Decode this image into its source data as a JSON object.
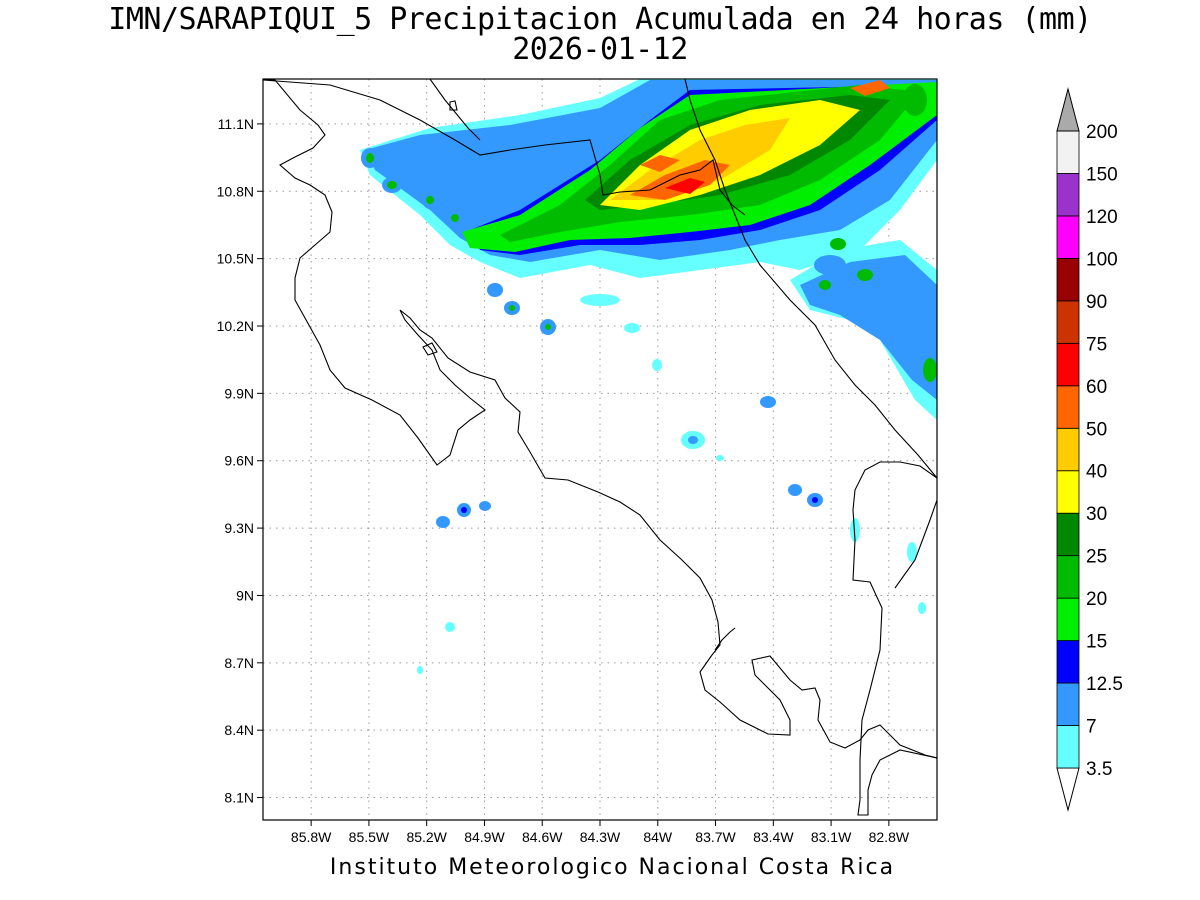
{
  "title_line1": "IMN/SARAPIQUI_5 Precipitacion Acumulada en 24 horas (mm)",
  "title_line2": "2026-01-12",
  "footer": "Instituto Meteorologico Nacional Costa Rica",
  "map": {
    "lon_range": [
      -86.05,
      -82.55
    ],
    "lat_range": [
      8.0,
      11.3
    ],
    "lat_ticks": [
      {
        "v": 11.1,
        "label": "11.1N"
      },
      {
        "v": 10.8,
        "label": "10.8N"
      },
      {
        "v": 10.5,
        "label": "10.5N"
      },
      {
        "v": 10.2,
        "label": "10.2N"
      },
      {
        "v": 9.9,
        "label": "9.9N"
      },
      {
        "v": 9.6,
        "label": "9.6N"
      },
      {
        "v": 9.3,
        "label": "9.3N"
      },
      {
        "v": 9.0,
        "label": "9N"
      },
      {
        "v": 8.7,
        "label": "8.7N"
      },
      {
        "v": 8.4,
        "label": "8.4N"
      },
      {
        "v": 8.1,
        "label": "8.1N"
      }
    ],
    "lon_ticks": [
      {
        "v": -85.8,
        "label": "85.8W"
      },
      {
        "v": -85.5,
        "label": "85.5W"
      },
      {
        "v": -85.2,
        "label": "85.2W"
      },
      {
        "v": -84.9,
        "label": "84.9W"
      },
      {
        "v": -84.6,
        "label": "84.6W"
      },
      {
        "v": -84.3,
        "label": "84.3W"
      },
      {
        "v": -84.0,
        "label": "84W"
      },
      {
        "v": -83.7,
        "label": "83.7W"
      },
      {
        "v": -83.4,
        "label": "83.4W"
      },
      {
        "v": -83.1,
        "label": "83.1W"
      },
      {
        "v": -82.8,
        "label": "82.8W"
      }
    ]
  },
  "colorbar": {
    "levels": [
      "3.5",
      "7",
      "12.5",
      "15",
      "20",
      "25",
      "30",
      "40",
      "50",
      "60",
      "75",
      "90",
      "100",
      "120",
      "150",
      "200"
    ],
    "colors": [
      "#66ffff",
      "#3399ff",
      "#0000ff",
      "#00ee00",
      "#00bb00",
      "#008800",
      "#ffff00",
      "#ffcc00",
      "#ff6600",
      "#ff0000",
      "#cc3300",
      "#990000",
      "#ff00ff",
      "#9933cc",
      "#f2f2f2",
      "#aaaaaa"
    ],
    "low_cap_color": "#ffffff",
    "high_cap_color": "#aaaaaa"
  }
}
